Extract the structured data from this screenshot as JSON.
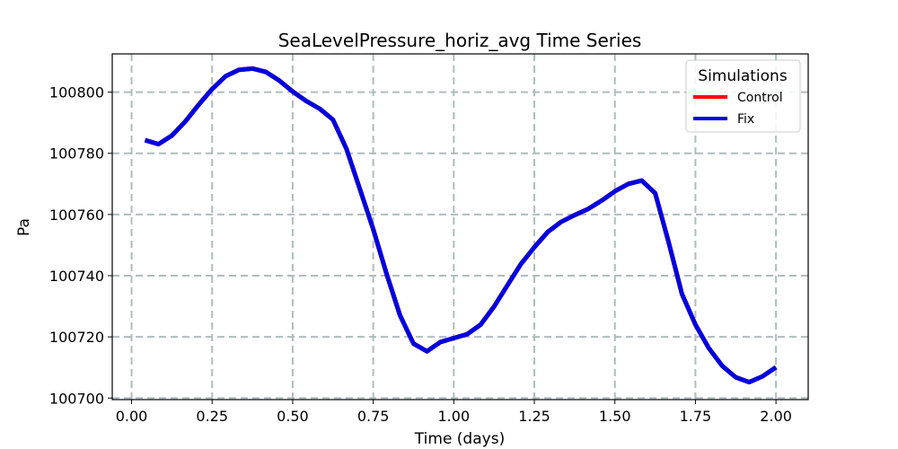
{
  "chart_data": {
    "type": "line",
    "title": "SeaLevelPressure_horiz_avg Time Series",
    "xlabel": "Time (days)",
    "ylabel": "Pa",
    "xlim": [
      -0.06,
      2.1
    ],
    "ylim": [
      100699.5,
      100812.5
    ],
    "xticks": [
      0.0,
      0.25,
      0.5,
      0.75,
      1.0,
      1.25,
      1.5,
      1.75,
      2.0
    ],
    "xtick_labels": [
      "0.00",
      "0.25",
      "0.50",
      "0.75",
      "1.00",
      "1.25",
      "1.50",
      "1.75",
      "2.00"
    ],
    "yticks": [
      100700,
      100720,
      100740,
      100760,
      100780,
      100800
    ],
    "ytick_labels": [
      "100700",
      "100720",
      "100740",
      "100760",
      "100780",
      "100800"
    ],
    "grid": true,
    "legend": {
      "title": "Simulations",
      "placement": "top-right",
      "entries": [
        {
          "name": "Control",
          "color": "#ff0000"
        },
        {
          "name": "Fix",
          "color": "#0000dd"
        }
      ]
    },
    "x": [
      0.0417,
      0.0833,
      0.125,
      0.1667,
      0.2083,
      0.25,
      0.2917,
      0.3333,
      0.375,
      0.4167,
      0.4583,
      0.5,
      0.5417,
      0.5833,
      0.625,
      0.6667,
      0.7083,
      0.75,
      0.7917,
      0.8333,
      0.875,
      0.9167,
      0.9583,
      1.0,
      1.0417,
      1.0833,
      1.125,
      1.1667,
      1.2083,
      1.25,
      1.2917,
      1.3333,
      1.375,
      1.4167,
      1.4583,
      1.5,
      1.5417,
      1.5833,
      1.625,
      1.6667,
      1.7083,
      1.75,
      1.7917,
      1.8333,
      1.875,
      1.9167,
      1.9583,
      2.0
    ],
    "series": [
      {
        "name": "Control",
        "color": "#ff0000",
        "values": [
          100784.3,
          100783.0,
          100785.8,
          100790.4,
          100795.9,
          100801.0,
          100805.2,
          100807.3,
          100807.7,
          100806.6,
          100803.8,
          100800.2,
          100797.1,
          100794.6,
          100791.0,
          100781.5,
          100768.4,
          100755.2,
          100740.5,
          100727.0,
          100717.8,
          100715.3,
          100718.3,
          100719.6,
          100720.9,
          100724.0,
          100729.9,
          100736.9,
          100743.8,
          100749.3,
          100754.3,
          100757.6,
          100759.8,
          100761.8,
          100764.5,
          100767.6,
          100770.0,
          100771.1,
          100767.0,
          100751.0,
          100734.0,
          100724.0,
          100716.3,
          100710.5,
          100706.8,
          100705.2,
          100707.1,
          100710.1
        ]
      },
      {
        "name": "Fix",
        "color": "#0000dd",
        "values": [
          100784.3,
          100783.0,
          100785.8,
          100790.4,
          100795.9,
          100801.0,
          100805.2,
          100807.3,
          100807.7,
          100806.6,
          100803.8,
          100800.2,
          100797.1,
          100794.6,
          100791.0,
          100781.5,
          100768.4,
          100755.2,
          100740.5,
          100727.0,
          100717.8,
          100715.3,
          100718.3,
          100719.6,
          100720.9,
          100724.0,
          100729.9,
          100736.9,
          100743.8,
          100749.3,
          100754.3,
          100757.6,
          100759.8,
          100761.8,
          100764.5,
          100767.6,
          100770.0,
          100771.1,
          100767.0,
          100751.0,
          100734.0,
          100724.0,
          100716.3,
          100710.5,
          100706.8,
          100705.2,
          100707.1,
          100710.1
        ]
      }
    ]
  }
}
